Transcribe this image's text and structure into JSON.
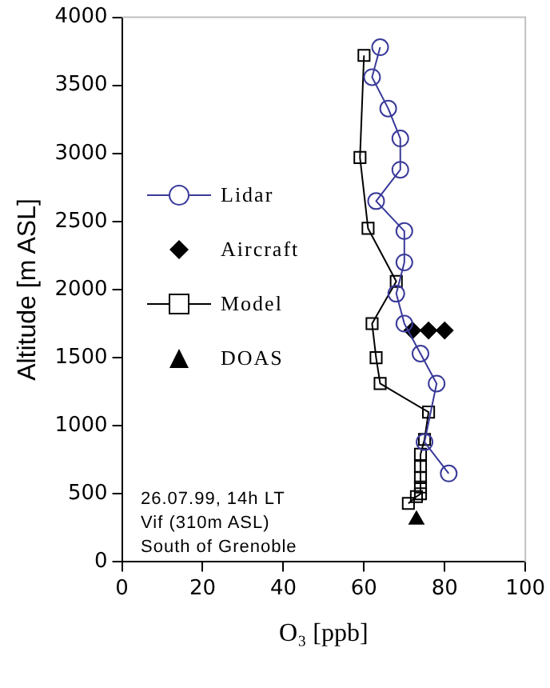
{
  "chart_data": {
    "type": "line",
    "xlabel": "O₃ [ppb]",
    "ylabel": "Altitude [m ASL]",
    "xlim": [
      0,
      100
    ],
    "xticks": [
      0,
      20,
      40,
      60,
      80,
      100
    ],
    "ylim": [
      0,
      4000
    ],
    "yticks": [
      0,
      500,
      1000,
      1500,
      2000,
      2500,
      3000,
      3500,
      4000
    ],
    "grid": false,
    "legend": "left",
    "annotations": [
      "26.07.99, 14h LT",
      "Vif (310m ASL)",
      "South of Grenoble"
    ],
    "series": [
      {
        "name": "Lidar",
        "type": "line",
        "marker": "circle",
        "color": "#3a3a9a",
        "x": [
          64,
          62,
          66,
          69,
          69,
          63,
          70,
          70,
          68,
          70,
          74,
          78,
          75,
          81
        ],
        "values": [
          3780,
          3560,
          3330,
          3110,
          2880,
          2650,
          2430,
          2200,
          1970,
          1750,
          1530,
          1310,
          880,
          650
        ]
      },
      {
        "name": "Aircraft",
        "type": "scatter",
        "marker": "diamond",
        "color": "#000000",
        "x": [
          72,
          76,
          80
        ],
        "values": [
          1700,
          1700,
          1700
        ]
      },
      {
        "name": "Model",
        "type": "line",
        "marker": "square",
        "color": "#000000",
        "x": [
          60,
          59,
          61,
          68,
          62,
          63,
          64,
          76,
          75,
          74,
          74,
          74,
          74,
          74,
          73,
          71
        ],
        "values": [
          3720,
          2970,
          2450,
          2060,
          1750,
          1500,
          1310,
          1100,
          900,
          790,
          700,
          620,
          550,
          500,
          480,
          430
        ]
      },
      {
        "name": "DOAS",
        "type": "scatter",
        "marker": "triangle",
        "color": "#000000",
        "x": [
          73
        ],
        "values": [
          310
        ]
      }
    ]
  }
}
